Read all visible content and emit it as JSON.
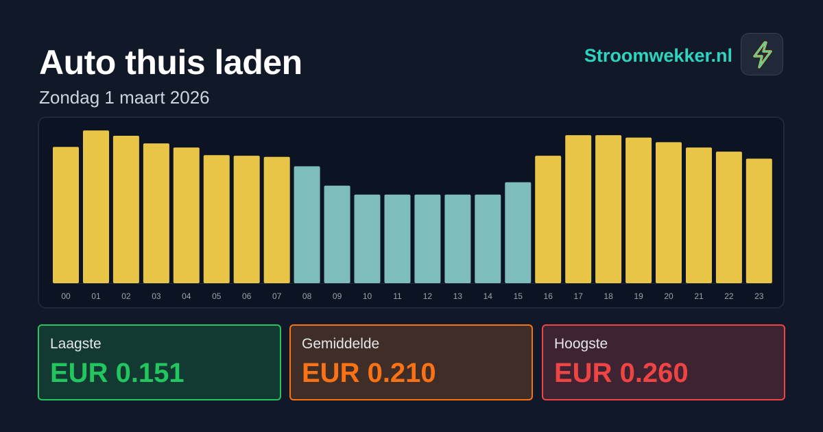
{
  "header": {
    "title": "Auto thuis laden",
    "date": "Zondag 1 maart 2026",
    "brand": "Stroomwekker.nl",
    "logo_icon": "lightning-bolt-icon"
  },
  "colors": {
    "background": "#111827",
    "bar_high": "#e8c547",
    "bar_low": "#7fbcbc",
    "brand": "#2dd4bf",
    "low": "#22c55e",
    "average": "#f97316",
    "high": "#ef4444"
  },
  "chart_data": {
    "type": "bar",
    "title": "",
    "xlabel": "",
    "ylabel": "",
    "categories": [
      "00",
      "01",
      "02",
      "03",
      "04",
      "05",
      "06",
      "07",
      "08",
      "09",
      "10",
      "11",
      "12",
      "13",
      "14",
      "15",
      "16",
      "17",
      "18",
      "19",
      "20",
      "21",
      "22",
      "23"
    ],
    "values": [
      0.232,
      0.26,
      0.251,
      0.238,
      0.231,
      0.218,
      0.217,
      0.215,
      0.199,
      0.166,
      0.151,
      0.151,
      0.151,
      0.151,
      0.151,
      0.172,
      0.217,
      0.252,
      0.252,
      0.248,
      0.24,
      0.231,
      0.224,
      0.212
    ],
    "categories_colored_low": [
      "08",
      "09",
      "10",
      "11",
      "12",
      "13",
      "14",
      "15"
    ],
    "ylim": [
      0,
      0.272
    ],
    "grid": false,
    "legend": "none"
  },
  "stats": {
    "low": {
      "label": "Laagste",
      "value": "EUR 0.151"
    },
    "avg": {
      "label": "Gemiddelde",
      "value": "EUR 0.210"
    },
    "high": {
      "label": "Hoogste",
      "value": "EUR 0.260"
    }
  }
}
